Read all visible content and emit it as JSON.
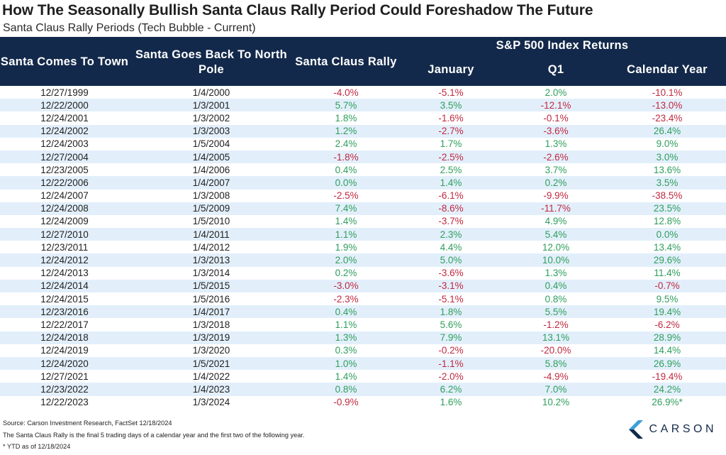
{
  "title": "How The Seasonally Bullish Santa Claus Rally Period Could Foreshadow The Future",
  "subtitle": "Santa Claus Rally Periods (Tech Bubble - Current)",
  "table": {
    "header": {
      "col1": "Santa Comes To Town",
      "col2": "Santa Goes Back To North Pole",
      "col3": "Santa Claus Rally",
      "group": "S&P 500 Index Returns",
      "col4": "January",
      "col5": "Q1",
      "col6": "Calendar Year"
    },
    "rows": [
      [
        "12/27/1999",
        "1/4/2000",
        "-4.0%",
        "-5.1%",
        "2.0%",
        "-10.1%"
      ],
      [
        "12/22/2000",
        "1/3/2001",
        "5.7%",
        "3.5%",
        "-12.1%",
        "-13.0%"
      ],
      [
        "12/24/2001",
        "1/3/2002",
        "1.8%",
        "-1.6%",
        "-0.1%",
        "-23.4%"
      ],
      [
        "12/24/2002",
        "1/3/2003",
        "1.2%",
        "-2.7%",
        "-3.6%",
        "26.4%"
      ],
      [
        "12/24/2003",
        "1/5/2004",
        "2.4%",
        "1.7%",
        "1.3%",
        "9.0%"
      ],
      [
        "12/27/2004",
        "1/4/2005",
        "-1.8%",
        "-2.5%",
        "-2.6%",
        "3.0%"
      ],
      [
        "12/23/2005",
        "1/4/2006",
        "0.4%",
        "2.5%",
        "3.7%",
        "13.6%"
      ],
      [
        "12/22/2006",
        "1/4/2007",
        "0.0%",
        "1.4%",
        "0.2%",
        "3.5%"
      ],
      [
        "12/24/2007",
        "1/3/2008",
        "-2.5%",
        "-6.1%",
        "-9.9%",
        "-38.5%"
      ],
      [
        "12/24/2008",
        "1/5/2009",
        "7.4%",
        "-8.6%",
        "-11.7%",
        "23.5%"
      ],
      [
        "12/24/2009",
        "1/5/2010",
        "1.4%",
        "-3.7%",
        "4.9%",
        "12.8%"
      ],
      [
        "12/27/2010",
        "1/4/2011",
        "1.1%",
        "2.3%",
        "5.4%",
        "0.0%"
      ],
      [
        "12/23/2011",
        "1/4/2012",
        "1.9%",
        "4.4%",
        "12.0%",
        "13.4%"
      ],
      [
        "12/24/2012",
        "1/3/2013",
        "2.0%",
        "5.0%",
        "10.0%",
        "29.6%"
      ],
      [
        "12/24/2013",
        "1/3/2014",
        "0.2%",
        "-3.6%",
        "1.3%",
        "11.4%"
      ],
      [
        "12/24/2014",
        "1/5/2015",
        "-3.0%",
        "-3.1%",
        "0.4%",
        "-0.7%"
      ],
      [
        "12/24/2015",
        "1/5/2016",
        "-2.3%",
        "-5.1%",
        "0.8%",
        "9.5%"
      ],
      [
        "12/23/2016",
        "1/4/2017",
        "0.4%",
        "1.8%",
        "5.5%",
        "19.4%"
      ],
      [
        "12/22/2017",
        "1/3/2018",
        "1.1%",
        "5.6%",
        "-1.2%",
        "-6.2%"
      ],
      [
        "12/24/2018",
        "1/3/2019",
        "1.3%",
        "7.9%",
        "13.1%",
        "28.9%"
      ],
      [
        "12/24/2019",
        "1/3/2020",
        "0.3%",
        "-0.2%",
        "-20.0%",
        "14.4%"
      ],
      [
        "12/24/2020",
        "1/5/2021",
        "1.0%",
        "-1.1%",
        "5.8%",
        "26.9%"
      ],
      [
        "12/27/2021",
        "1/4/2022",
        "1.4%",
        "-2.0%",
        "-4.9%",
        "-19.4%"
      ],
      [
        "12/23/2022",
        "1/4/2023",
        "0.8%",
        "6.2%",
        "7.0%",
        "24.2%"
      ],
      [
        "12/22/2023",
        "1/3/2024",
        "-0.9%",
        "1.6%",
        "10.2%",
        "26.9%*"
      ]
    ]
  },
  "footnotes": {
    "source": "Source: Carson Investment Research, FactSet 12/18/2024",
    "definition": "The Santa Claus Rally is the final 5 trading days of a calendar year and the first two of the following year.",
    "ytd": "* YTD as of 12/18/2024"
  },
  "logo": {
    "text": "CARSON",
    "icon": "carson-chevron-logo-icon"
  },
  "colors": {
    "header_bg": "#13294b",
    "stripe": "#e2effb",
    "positive": "#2f9e5c",
    "negative": "#c0283f"
  }
}
